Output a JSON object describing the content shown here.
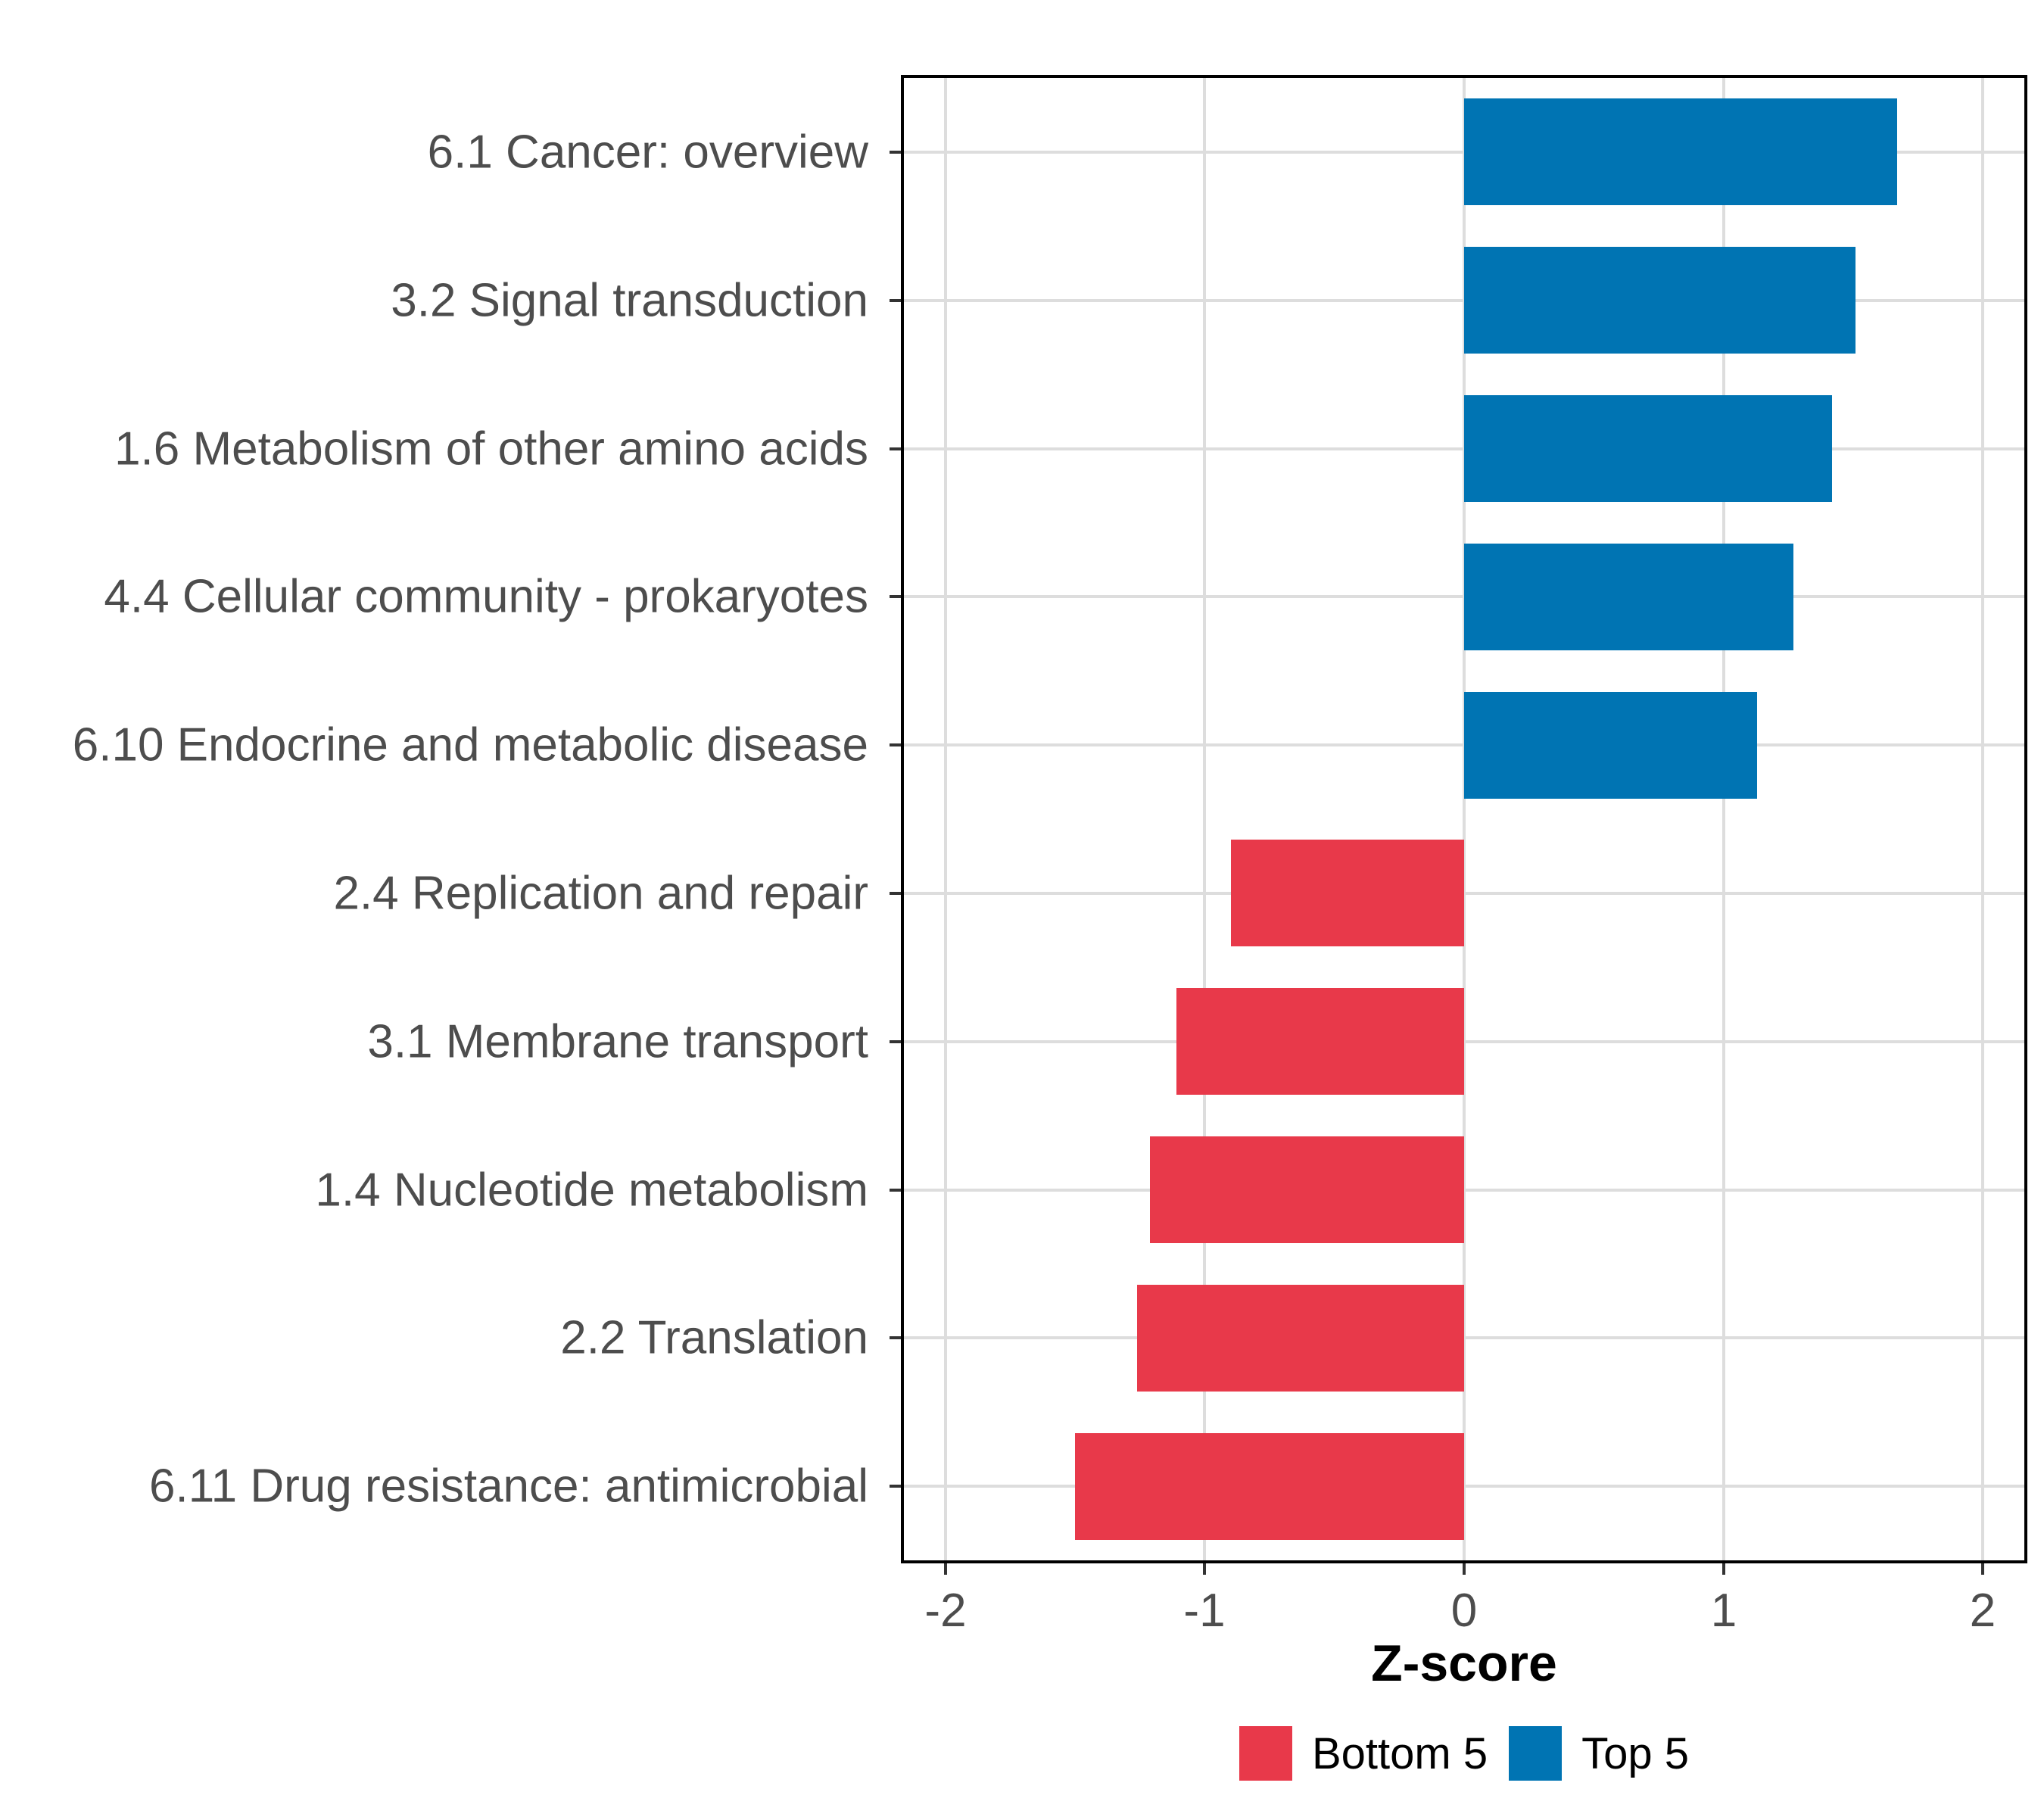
{
  "figure": {
    "background": "#FFFFFF",
    "panel_border_color": "#000000",
    "grid_color": "#DDDDDD",
    "tick_mark_color": "#333333",
    "axis_text_color": "#4D4D4D",
    "axis_title_color": "#000000"
  },
  "chart_data": {
    "type": "bar",
    "orientation": "horizontal",
    "title": "",
    "xlabel": "Z-score",
    "ylabel": "",
    "grid": "major",
    "legend_position": "bottom",
    "xlim": [
      -2.16,
      2.16
    ],
    "x_ticks": [
      {
        "value": -2,
        "label": "-2"
      },
      {
        "value": -1,
        "label": "-1"
      },
      {
        "value": 0,
        "label": "0"
      },
      {
        "value": 1,
        "label": "1"
      },
      {
        "value": 2,
        "label": "2"
      }
    ],
    "categories": [
      "6.1 Cancer: overview",
      "3.2 Signal transduction",
      "1.6 Metabolism of other amino acids",
      "4.4 Cellular community - prokaryotes",
      "6.10 Endocrine and metabolic disease",
      "2.4 Replication and repair",
      "3.1 Membrane transport",
      "1.4 Nucleotide metabolism",
      "2.2 Translation",
      "6.11 Drug resistance: antimicrobial"
    ],
    "values": [
      1.67,
      1.51,
      1.42,
      1.27,
      1.13,
      -0.9,
      -1.11,
      -1.21,
      -1.26,
      -1.5
    ],
    "groups": [
      "Top 5",
      "Top 5",
      "Top 5",
      "Top 5",
      "Top 5",
      "Bottom 5",
      "Bottom 5",
      "Bottom 5",
      "Bottom 5",
      "Bottom 5"
    ],
    "series_colors": {
      "Top 5": "#0074B3",
      "Bottom 5": "#E8394A"
    },
    "legend": {
      "items": [
        {
          "label": "Bottom 5",
          "color": "#E8394A"
        },
        {
          "label": "Top 5",
          "color": "#0074B3"
        }
      ]
    }
  }
}
